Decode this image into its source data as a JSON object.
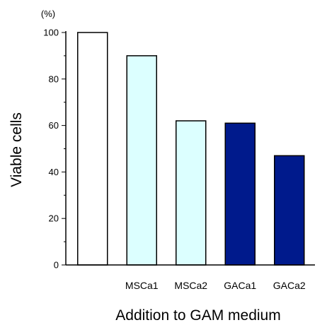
{
  "chart_data": {
    "type": "bar",
    "categories": [
      "",
      "MSCa1",
      "MSCa2",
      "GACa1",
      "GACa2"
    ],
    "values": [
      100,
      90,
      62,
      61,
      47
    ],
    "bar_colors": [
      "#ffffff",
      "#dcffff",
      "#dcffff",
      "#001a8c",
      "#001a8c"
    ],
    "bar_stroke": "#000000",
    "title": "",
    "xlabel": "Addition to GAM medium",
    "ylabel": "Viable cells",
    "y_unit": "(%)",
    "ylim": [
      0,
      100
    ],
    "yticks": [
      0,
      20,
      40,
      60,
      80,
      100
    ],
    "grid": false,
    "legend": "none"
  }
}
